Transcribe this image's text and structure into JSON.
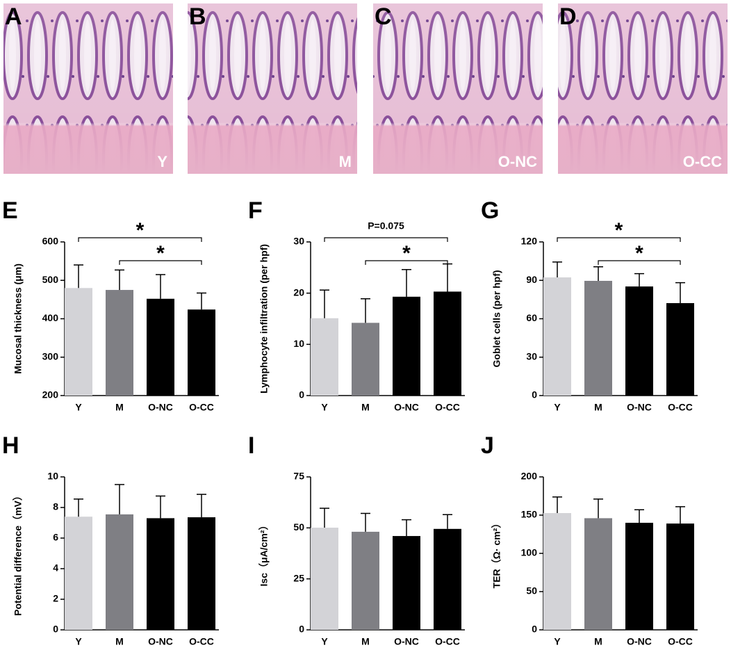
{
  "panels": [
    {
      "letter": "A",
      "group": "Y"
    },
    {
      "letter": "B",
      "group": "M"
    },
    {
      "letter": "C",
      "group": "O-NC"
    },
    {
      "letter": "D",
      "group": "O-CC"
    }
  ],
  "chart_data": [
    {
      "type": "bar",
      "label": "E",
      "ylabel": "Mucosal thickness (μm)",
      "categories": [
        "Y",
        "M",
        "O-NC",
        "O-CC"
      ],
      "values": [
        480,
        475,
        452,
        424
      ],
      "errors": [
        60,
        52,
        63,
        43
      ],
      "colors": [
        "#d3d3d7",
        "#7f7f84",
        "#000000",
        "#000000"
      ],
      "ylim": [
        200,
        600
      ],
      "yticks": [
        200,
        300,
        400,
        500,
        600
      ],
      "annotations": [
        {
          "text": "*",
          "between": [
            "Y",
            "O-CC"
          ]
        },
        {
          "text": "*",
          "between": [
            "M",
            "O-CC"
          ]
        }
      ]
    },
    {
      "type": "bar",
      "label": "F",
      "ylabel": "Lymphocyte infiltration (per hpf)",
      "categories": [
        "Y",
        "M",
        "O-NC",
        "O-CC"
      ],
      "values": [
        15.1,
        14.2,
        19.3,
        20.3
      ],
      "errors": [
        5.5,
        4.7,
        5.3,
        5.4
      ],
      "colors": [
        "#d3d3d7",
        "#7f7f84",
        "#000000",
        "#000000"
      ],
      "ylim": [
        0,
        30
      ],
      "yticks": [
        0,
        10,
        20,
        30
      ],
      "annotations": [
        {
          "text": "P=0.075",
          "between": [
            "Y",
            "O-CC"
          ]
        },
        {
          "text": "*",
          "between": [
            "M",
            "O-CC"
          ]
        }
      ]
    },
    {
      "type": "bar",
      "label": "G",
      "ylabel": "Goblet cells (per hpf)",
      "categories": [
        "Y",
        "M",
        "O-NC",
        "O-CC"
      ],
      "values": [
        92.3,
        89.6,
        85.2,
        72.2
      ],
      "errors": [
        12,
        11,
        10,
        16
      ],
      "colors": [
        "#d3d3d7",
        "#7f7f84",
        "#000000",
        "#000000"
      ],
      "ylim": [
        0,
        120
      ],
      "yticks": [
        0,
        30,
        60,
        90,
        120
      ],
      "annotations": [
        {
          "text": "*",
          "between": [
            "Y",
            "O-CC"
          ]
        },
        {
          "text": "*",
          "between": [
            "M",
            "O-CC"
          ]
        }
      ]
    },
    {
      "type": "bar",
      "label": "H",
      "ylabel": "Potential difference（mV）",
      "categories": [
        "Y",
        "M",
        "O-NC",
        "O-CC"
      ],
      "values": [
        7.4,
        7.55,
        7.3,
        7.36
      ],
      "errors": [
        1.15,
        1.95,
        1.45,
        1.5
      ],
      "colors": [
        "#d3d3d7",
        "#7f7f84",
        "#000000",
        "#000000"
      ],
      "ylim": [
        0,
        10
      ],
      "yticks": [
        0,
        2,
        4,
        6,
        8,
        10
      ],
      "annotations": []
    },
    {
      "type": "bar",
      "label": "I",
      "ylabel": "Isc（μA/cm²）",
      "categories": [
        "Y",
        "M",
        "O-NC",
        "O-CC"
      ],
      "values": [
        50.1,
        48.1,
        46,
        49.5
      ],
      "errors": [
        9.5,
        9,
        8,
        7
      ],
      "colors": [
        "#d3d3d7",
        "#7f7f84",
        "#000000",
        "#000000"
      ],
      "ylim": [
        0,
        75
      ],
      "yticks": [
        0,
        25,
        50,
        75
      ],
      "annotations": []
    },
    {
      "type": "bar",
      "label": "J",
      "ylabel": "TER（Ω· cm²）",
      "categories": [
        "Y",
        "M",
        "O-NC",
        "O-CC"
      ],
      "values": [
        152.7,
        146,
        140,
        139
      ],
      "errors": [
        21,
        25,
        17,
        22
      ],
      "colors": [
        "#d3d3d7",
        "#7f7f84",
        "#000000",
        "#000000"
      ],
      "ylim": [
        0,
        200
      ],
      "yticks": [
        0,
        50,
        100,
        150,
        200
      ],
      "annotations": []
    }
  ]
}
